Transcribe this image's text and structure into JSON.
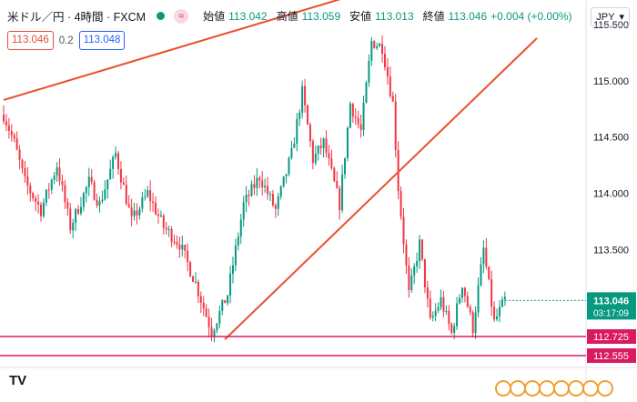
{
  "header": {
    "title": "米ドル／円 · 4時間 · FXCM",
    "flag_icon": "wave-icon",
    "open_label": "始値",
    "open": "113.042",
    "high_label": "高値",
    "high": "113.059",
    "low_label": "安値",
    "low": "113.013",
    "close_label": "終値",
    "close": "113.046",
    "change": "+0.004 (+0.00%)"
  },
  "quote": {
    "sell": "113.046",
    "spread": "0.2",
    "buy": "113.048"
  },
  "currency_selector": {
    "value": "JPY",
    "icon": "chevron-down-icon"
  },
  "axis": {
    "ticks": [
      "115.500",
      "115.000",
      "114.500",
      "114.000",
      "113.500",
      "113.000"
    ],
    "last_price": "113.046",
    "countdown": "03:17:09",
    "level1": "112.725",
    "level2": "112.555"
  },
  "logo_text": "TV",
  "colors": {
    "up": "#089981",
    "down": "#f23645",
    "trend": "#e8502a",
    "level": "#d81b60",
    "price_tag": "#089981"
  },
  "chart_data": {
    "type": "candlestick",
    "ylim": [
      112.45,
      115.72
    ],
    "y_ticks": [
      113.0,
      113.5,
      114.0,
      114.5,
      115.0,
      115.5
    ],
    "keypoints": [
      [
        0,
        114.7
      ],
      [
        4,
        114.45
      ],
      [
        8,
        114.1
      ],
      [
        14,
        113.85
      ],
      [
        20,
        114.25
      ],
      [
        25,
        113.7
      ],
      [
        32,
        114.1
      ],
      [
        36,
        113.9
      ],
      [
        42,
        114.35
      ],
      [
        48,
        113.75
      ],
      [
        54,
        114.0
      ],
      [
        60,
        113.7
      ],
      [
        66,
        113.55
      ],
      [
        72,
        113.2
      ],
      [
        78,
        112.77
      ],
      [
        84,
        113.1
      ],
      [
        90,
        113.9
      ],
      [
        96,
        114.15
      ],
      [
        102,
        113.85
      ],
      [
        108,
        114.35
      ],
      [
        112,
        114.9
      ],
      [
        116,
        114.3
      ],
      [
        120,
        114.45
      ],
      [
        126,
        113.9
      ],
      [
        130,
        114.8
      ],
      [
        134,
        114.55
      ],
      [
        138,
        115.35
      ],
      [
        142,
        115.3
      ],
      [
        146,
        114.8
      ],
      [
        148,
        114.05
      ],
      [
        152,
        113.1
      ],
      [
        156,
        113.55
      ],
      [
        160,
        112.85
      ],
      [
        164,
        113.05
      ],
      [
        168,
        112.75
      ],
      [
        172,
        113.2
      ],
      [
        176,
        112.8
      ],
      [
        180,
        113.5
      ],
      [
        184,
        112.85
      ],
      [
        188,
        113.05
      ]
    ],
    "trend_lines": [
      {
        "x1": 0,
        "y1": 114.83,
        "x2": 166,
        "y2": 116.01
      },
      {
        "x1": 83,
        "y1": 112.7,
        "x2": 200,
        "y2": 115.38
      }
    ],
    "horizontal_levels": [
      112.725,
      112.555
    ],
    "last_price": 113.046
  }
}
